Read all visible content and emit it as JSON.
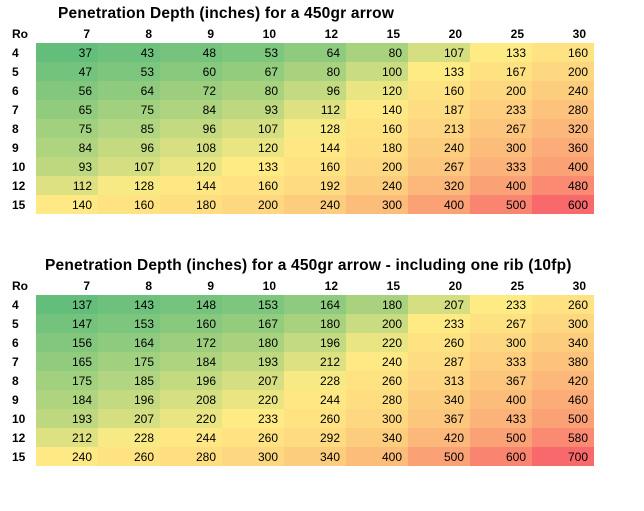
{
  "chart_data": [
    {
      "type": "heatmap",
      "title": "Penetration Depth (inches)  for a 450gr arrow",
      "row_header": "Ro",
      "columns": [
        "7",
        "8",
        "9",
        "10",
        "12",
        "15",
        "20",
        "25",
        "30"
      ],
      "rows": [
        "4",
        "5",
        "6",
        "7",
        "8",
        "9",
        "10",
        "12",
        "15"
      ],
      "values": [
        [
          "37",
          "43",
          "48",
          "53",
          "64",
          "80",
          "107",
          "133",
          "160"
        ],
        [
          "47",
          "53",
          "60",
          "67",
          "80",
          "100",
          "133",
          "167",
          "200"
        ],
        [
          "56",
          "64",
          "72",
          "80",
          "96",
          "120",
          "160",
          "200",
          "240"
        ],
        [
          "65",
          "75",
          "84",
          "93",
          "112",
          "140",
          "187",
          "233",
          "280"
        ],
        [
          "75",
          "85",
          "96",
          "107",
          "128",
          "160",
          "213",
          "267",
          "320"
        ],
        [
          "84",
          "96",
          "108",
          "120",
          "144",
          "180",
          "240",
          "300",
          "360"
        ],
        [
          "93",
          "107",
          "120",
          "133",
          "160",
          "200",
          "267",
          "333",
          "400"
        ],
        [
          "112",
          "128",
          "144",
          "160",
          "192",
          "240",
          "320",
          "400",
          "480"
        ],
        [
          "140",
          "160",
          "180",
          "200",
          "240",
          "300",
          "400",
          "500",
          "600"
        ]
      ],
      "color_scale": {
        "low": "#63be7b",
        "mid": "#ffeb84",
        "high": "#f8696b"
      }
    },
    {
      "type": "heatmap",
      "title": "Penetration Depth (inches)  for a 450gr arrow  - including one rib (10fp)",
      "row_header": "Ro",
      "columns": [
        "7",
        "8",
        "9",
        "10",
        "12",
        "15",
        "20",
        "25",
        "30"
      ],
      "rows": [
        "4",
        "5",
        "6",
        "7",
        "8",
        "9",
        "10",
        "12",
        "15"
      ],
      "values": [
        [
          "137",
          "143",
          "148",
          "153",
          "164",
          "180",
          "207",
          "233",
          "260"
        ],
        [
          "147",
          "153",
          "160",
          "167",
          "180",
          "200",
          "233",
          "267",
          "300"
        ],
        [
          "156",
          "164",
          "172",
          "180",
          "196",
          "220",
          "260",
          "300",
          "340"
        ],
        [
          "165",
          "175",
          "184",
          "193",
          "212",
          "240",
          "287",
          "333",
          "380"
        ],
        [
          "175",
          "185",
          "196",
          "207",
          "228",
          "260",
          "313",
          "367",
          "420"
        ],
        [
          "184",
          "196",
          "208",
          "220",
          "244",
          "280",
          "340",
          "400",
          "460"
        ],
        [
          "193",
          "207",
          "220",
          "233",
          "260",
          "300",
          "367",
          "433",
          "500"
        ],
        [
          "212",
          "228",
          "244",
          "260",
          "292",
          "340",
          "420",
          "500",
          "580"
        ],
        [
          "240",
          "260",
          "280",
          "300",
          "340",
          "400",
          "500",
          "600",
          "700"
        ]
      ],
      "color_scale": {
        "low": "#63be7b",
        "mid": "#ffeb84",
        "high": "#f8696b"
      }
    }
  ]
}
